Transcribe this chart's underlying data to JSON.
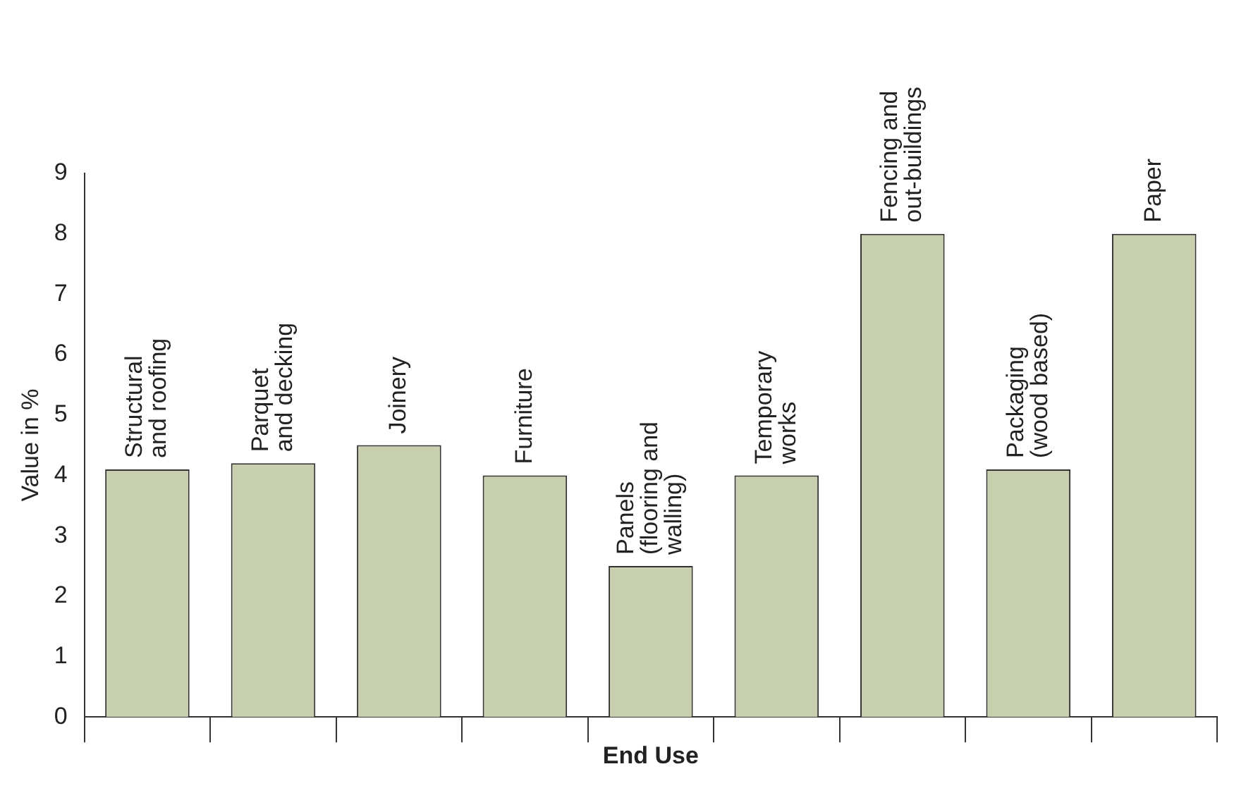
{
  "chart_data": {
    "type": "bar",
    "xlabel": "End Use",
    "ylabel": "Value in %",
    "categories": [
      "Structural\nand roofing",
      "Parquet\nand decking",
      "Joinery",
      "Furniture",
      "Panels\n(flooring and\nwalling)",
      "Temporary\nworks",
      "Fencing and\nout-buildings",
      "Packaging\n(wood based)",
      "Paper"
    ],
    "values": [
      4.1,
      4.2,
      4.5,
      4.0,
      2.5,
      4.0,
      8.0,
      4.1,
      8.0
    ],
    "color": "#c8cfae",
    "ylim": [
      0,
      9
    ],
    "yticks": [
      0,
      1,
      2,
      3,
      4,
      5,
      6,
      7,
      8,
      9
    ],
    "legend": false
  }
}
